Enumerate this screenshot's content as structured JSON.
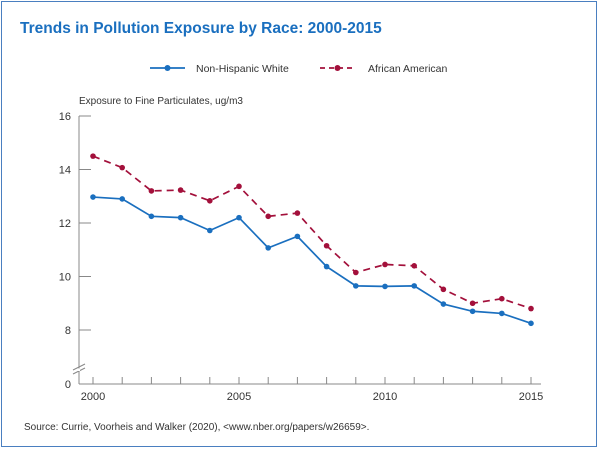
{
  "chart_data": {
    "type": "line",
    "title": "Trends in Pollution Exposure by Race: 2000-2015",
    "ylabel": "Exposure to Fine Particulates, ug/m3",
    "xlabel": "",
    "x": [
      2000,
      2001,
      2002,
      2003,
      2004,
      2005,
      2006,
      2007,
      2008,
      2009,
      2010,
      2011,
      2012,
      2013,
      2014,
      2015
    ],
    "x_tick_labels": [
      "2000",
      "2005",
      "2010",
      "2015"
    ],
    "x_tick_values": [
      2000,
      2005,
      2010,
      2015
    ],
    "y_tick_labels": [
      "16",
      "14",
      "12",
      "10",
      "8",
      "0"
    ],
    "y_tick_values": [
      16,
      14,
      12,
      10,
      8,
      0
    ],
    "ylim": [
      0,
      16
    ],
    "y_axis_break": true,
    "grid": false,
    "legend_position": "top-center",
    "series": [
      {
        "name": "Non-Hispanic White",
        "color": "#1a6fbf",
        "style": "solid",
        "values": [
          12.97,
          12.9,
          12.25,
          12.2,
          11.72,
          12.2,
          11.07,
          11.5,
          10.37,
          9.65,
          9.63,
          9.65,
          8.97,
          8.7,
          8.62,
          8.25
        ]
      },
      {
        "name": "African American",
        "color": "#a3103b",
        "style": "dashed",
        "values": [
          14.5,
          14.07,
          13.2,
          13.23,
          12.83,
          13.37,
          12.25,
          12.37,
          11.15,
          10.15,
          10.45,
          10.4,
          9.52,
          9.0,
          9.17,
          8.8
        ]
      }
    ],
    "source": "Source: Currie, Voorheis and Walker (2020), <www.nber.org/papers/w26659>."
  }
}
